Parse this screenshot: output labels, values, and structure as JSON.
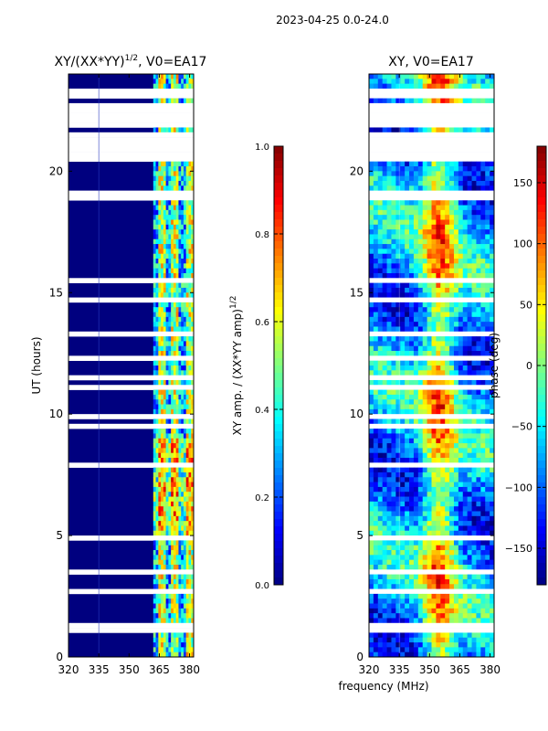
{
  "figure_title": "2023-04-25 0.0-24.0",
  "colors": {
    "background": "#00007f",
    "stripe": "#ffffff",
    "axis": "#000000"
  },
  "chart_data": [
    {
      "type": "heatmap",
      "title": "XY/(XX*YY)^1/2, V0=EA17",
      "title_main": "XY/(XX*YY)",
      "title_sup": "1/2",
      "title_tail": ", V0=EA17",
      "xlabel": "",
      "ylabel": "UT (hours)",
      "x_range": [
        320,
        382
      ],
      "y_range": [
        0,
        24
      ],
      "x_ticks": [
        320,
        335,
        350,
        365,
        380
      ],
      "y_ticks": [
        0,
        5,
        10,
        15,
        20
      ],
      "quantity": "amplitude",
      "colorbar": {
        "label_main": "XY amp. / (XX*YY amp)",
        "label_sup": "1/2",
        "range": [
          0.0,
          1.0
        ],
        "ticks": [
          "0.0",
          "0.2",
          "0.4",
          "0.6",
          "0.8",
          "1.0"
        ],
        "colormap": "jet"
      }
    },
    {
      "type": "heatmap",
      "title": "XY, V0=EA17",
      "xlabel": "frequency (MHz)",
      "ylabel": "",
      "x_range": [
        320,
        382
      ],
      "y_range": [
        0,
        24
      ],
      "x_ticks": [
        320,
        335,
        350,
        365,
        380
      ],
      "y_ticks": [
        0,
        5,
        10,
        15,
        20
      ],
      "quantity": "phase",
      "colorbar": {
        "label": "phase (deg)",
        "range": [
          -180,
          180
        ],
        "ticks": [
          "150",
          "100",
          "50",
          "0",
          "−50",
          "−100",
          "−150"
        ],
        "tick_values": [
          150,
          100,
          50,
          0,
          -50,
          -100,
          -150
        ],
        "colormap": "jet"
      }
    }
  ],
  "gap_rows_hours": [
    0.8,
    1.15,
    1.35,
    2.7,
    3.0,
    3.55,
    4.0,
    4.95,
    5.8,
    7.6,
    7.85,
    9.5,
    9.85,
    11.1,
    11.55,
    12.3,
    12.8,
    13.3,
    14.2,
    14.7,
    15.2,
    15.5,
    16.6,
    17.0,
    17.8,
    18.2,
    18.6,
    18.9,
    19.1,
    19.6,
    20.9,
    21.5,
    21.9,
    22.2,
    22.5,
    23.2,
    23.6
  ],
  "gap_blocks_hours": [
    [
      20.5,
      21.4
    ],
    [
      21.95,
      22.7
    ],
    [
      22.95,
      23.4
    ]
  ]
}
